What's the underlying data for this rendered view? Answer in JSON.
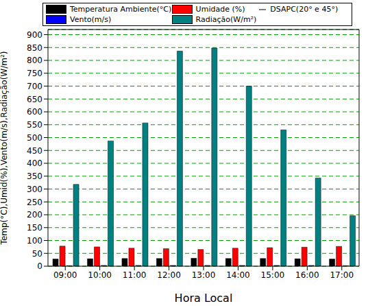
{
  "chart_data": {
    "type": "bar",
    "x_label": "Hora Local",
    "y_label": "Temp(°C),Umid(%),Vento(m/s),Radiação(W/m²)",
    "categories": [
      "09:00",
      "10:00",
      "11:00",
      "12:00",
      "13:00",
      "14:00",
      "15:00",
      "16:00",
      "17:00"
    ],
    "series": [
      {
        "name": "Temperatura Ambiente(°C)",
        "color": "#000000",
        "type": "bar",
        "values": [
          28,
          29,
          30,
          30,
          31,
          30,
          30,
          29,
          28
        ]
      },
      {
        "name": "Umidade (%)",
        "color": "#ff0000",
        "type": "bar",
        "values": [
          78,
          75,
          70,
          68,
          65,
          70,
          72,
          74,
          77
        ]
      },
      {
        "name": "DSAPC(20° e 45°)",
        "color": "#808080",
        "type": "line",
        "values": [
          null,
          null,
          null,
          null,
          null,
          null,
          null,
          null,
          null
        ]
      },
      {
        "name": "Vento(m/s)",
        "color": "#0000ff",
        "type": "bar",
        "values": [
          2,
          3,
          3,
          3,
          3,
          3,
          3,
          3,
          2
        ]
      },
      {
        "name": "Radiação(W/m²)",
        "color": "#008080",
        "type": "bar",
        "values": [
          318,
          487,
          557,
          836,
          848,
          700,
          530,
          343,
          196
        ]
      }
    ],
    "ylim": [
      0,
      920
    ],
    "yticks": [
      0,
      50,
      100,
      150,
      200,
      250,
      300,
      350,
      400,
      450,
      500,
      550,
      600,
      650,
      700,
      750,
      800,
      850,
      900
    ],
    "grid": true,
    "legend": "top"
  }
}
